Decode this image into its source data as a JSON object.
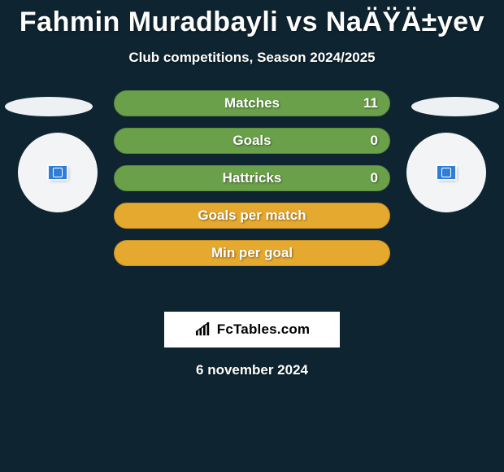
{
  "background_color": "#0e2430",
  "title": "Fahmin Muradbayli vs NaÄŸÄ±yev",
  "title_fontsize": 34,
  "title_color": "#ffffff",
  "subtitle": "Club competitions, Season 2024/2025",
  "subtitle_fontsize": 17,
  "brand": "FcTables.com",
  "brand_bg": "#ffffff",
  "brand_text_color": "#000000",
  "date": "6 november 2024",
  "left_decor": {
    "ellipse_color": "#eef1f3",
    "circle_color": "#f2f4f6",
    "flag_color": "#2e7dd7"
  },
  "right_decor": {
    "ellipse_color": "#eef1f3",
    "circle_color": "#f2f4f6",
    "flag_color": "#2e7dd7"
  },
  "bars": {
    "height": 32,
    "radius": 16,
    "label_fontsize": 17,
    "label_color": "#ffffff",
    "items": [
      {
        "label": "Matches",
        "left": "",
        "right": "11",
        "bg": "#6aa04a",
        "border": "#5a8c3e"
      },
      {
        "label": "Goals",
        "left": "",
        "right": "0",
        "bg": "#6aa04a",
        "border": "#5a8c3e"
      },
      {
        "label": "Hattricks",
        "left": "",
        "right": "0",
        "bg": "#6aa04a",
        "border": "#5a8c3e"
      },
      {
        "label": "Goals per match",
        "left": "",
        "right": "",
        "bg": "#e6a92f",
        "border": "#c7901f"
      },
      {
        "label": "Min per goal",
        "left": "",
        "right": "",
        "bg": "#e6a92f",
        "border": "#c7901f"
      }
    ]
  }
}
